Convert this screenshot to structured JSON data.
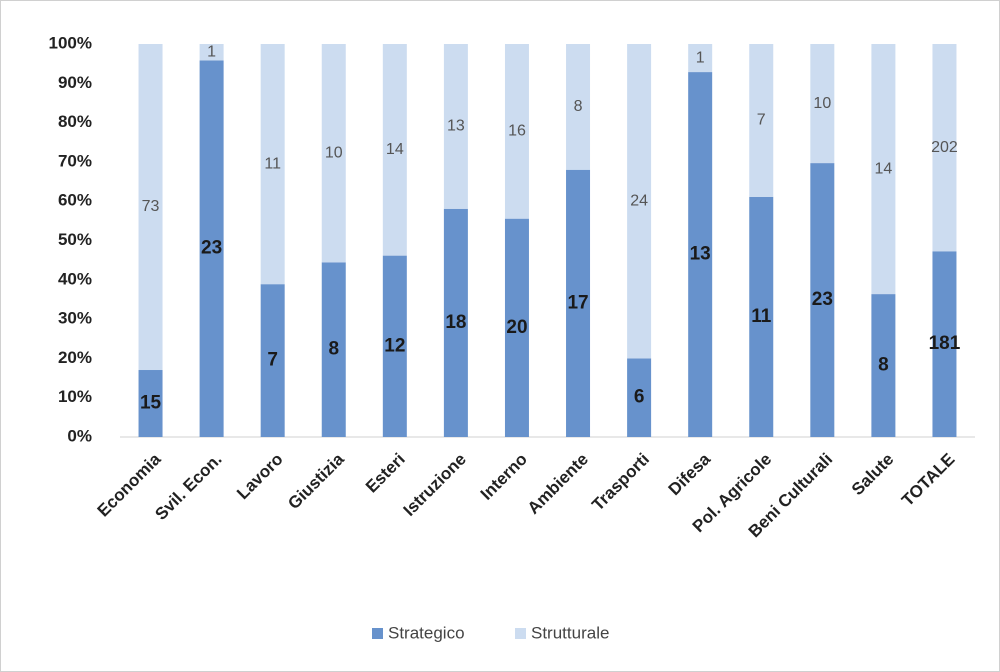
{
  "chart_data": {
    "type": "bar",
    "stacking": "percent",
    "categories": [
      "Economia",
      "Svil. Econ.",
      "Lavoro",
      "Giustizia",
      "Esteri",
      "Istruzione",
      "Interno",
      "Ambiente",
      "Trasporti",
      "Difesa",
      "Pol. Agricole",
      "Beni Culturali",
      "Salute",
      "TOTALE"
    ],
    "series": [
      {
        "name": "Strategico",
        "color": "#6792cc",
        "values": [
          15,
          23,
          7,
          8,
          12,
          18,
          20,
          17,
          6,
          13,
          11,
          23,
          8,
          181
        ]
      },
      {
        "name": "Strutturale",
        "color": "#ccdcf0",
        "values": [
          73,
          1,
          11,
          10,
          14,
          13,
          16,
          8,
          24,
          1,
          7,
          10,
          14,
          202
        ]
      }
    ],
    "ylim": [
      0,
      100
    ],
    "yticks": [
      {
        "value": 0,
        "label": "0%"
      },
      {
        "value": 10,
        "label": "10%"
      },
      {
        "value": 20,
        "label": "20%"
      },
      {
        "value": 30,
        "label": "30%"
      },
      {
        "value": 40,
        "label": "40%"
      },
      {
        "value": 50,
        "label": "50%"
      },
      {
        "value": 60,
        "label": "60%"
      },
      {
        "value": 70,
        "label": "70%"
      },
      {
        "value": 80,
        "label": "80%"
      },
      {
        "value": 90,
        "label": "90%"
      },
      {
        "value": 100,
        "label": "100%"
      }
    ],
    "grid": false,
    "legend": "bottom"
  }
}
